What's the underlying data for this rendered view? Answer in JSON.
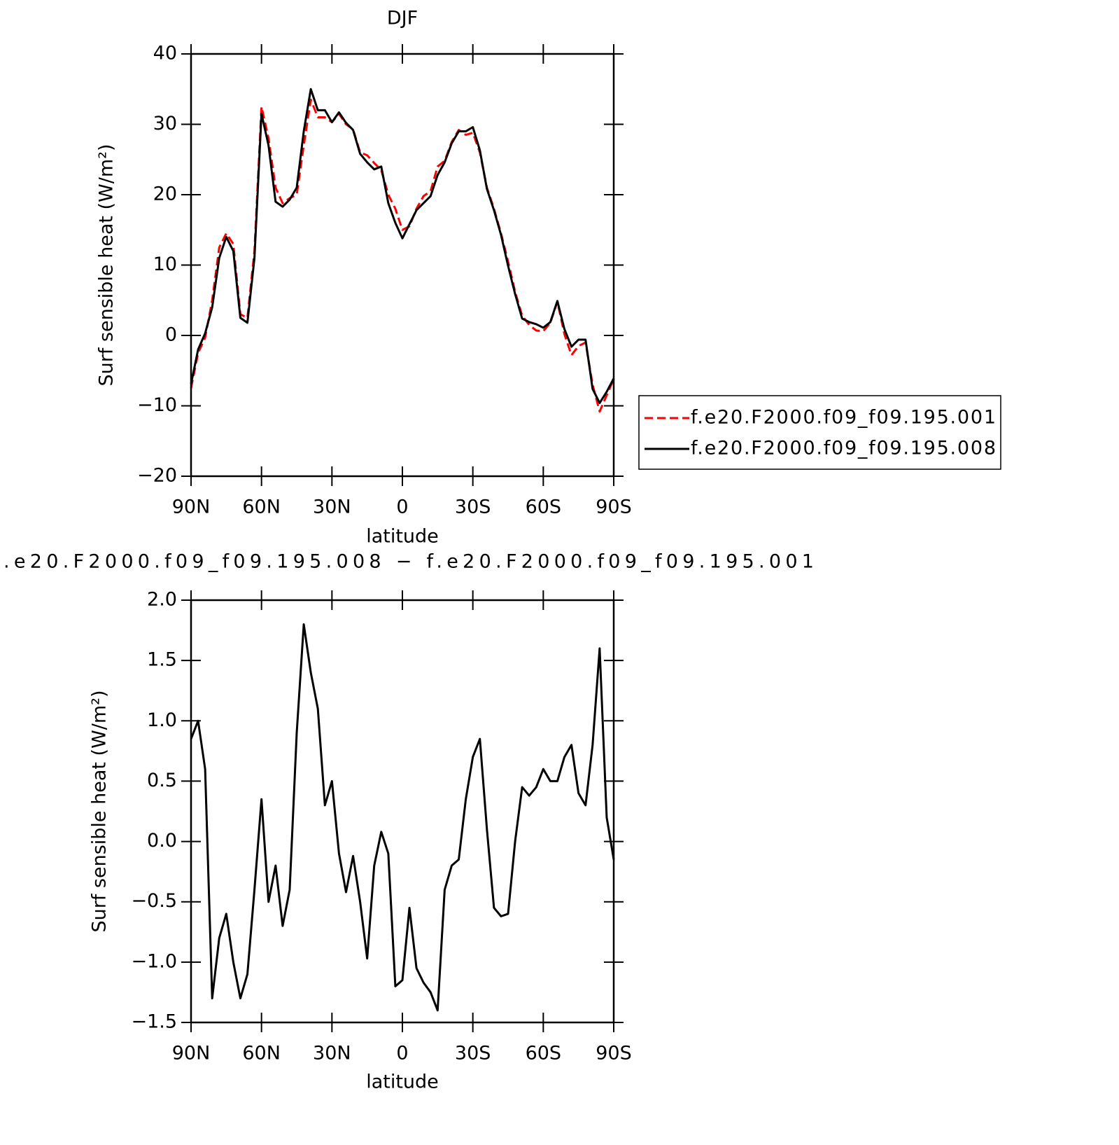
{
  "chart_data": [
    {
      "type": "line",
      "title": "DJF",
      "xlabel": "latitude",
      "ylabel": "Surf sensible heat (W/m²)",
      "xlim": [
        90,
        -90
      ],
      "ylim": [
        -20,
        40
      ],
      "xticks": [
        {
          "value": 90,
          "label": "90N"
        },
        {
          "value": 60,
          "label": "60N"
        },
        {
          "value": 30,
          "label": "30N"
        },
        0,
        {
          "value": -30,
          "label": "30S"
        },
        {
          "value": -60,
          "label": "60S"
        },
        {
          "value": -90,
          "label": "90S"
        }
      ],
      "yticks": [
        {
          "value": -20,
          "label": "−20"
        },
        {
          "value": -10,
          "label": "−10"
        },
        0,
        10,
        20,
        30,
        40
      ],
      "legend": "right",
      "x": [
        90,
        87,
        84,
        81,
        78,
        75,
        72,
        69,
        66,
        63,
        60,
        57,
        54,
        51,
        48,
        45,
        42,
        39,
        36,
        33,
        30,
        27,
        24,
        21,
        18,
        15,
        12,
        9,
        6,
        3,
        0,
        -3,
        -6,
        -9,
        -12,
        -15,
        -18,
        -21,
        -24,
        -27,
        -30,
        -33,
        -36,
        -39,
        -42,
        -45,
        -48,
        -51,
        -54,
        -57,
        -60,
        -63,
        -66,
        -69,
        -72,
        -75,
        -78,
        -81,
        -84,
        -87,
        -90
      ],
      "series": [
        {
          "name": "f.e20.F2000.f09_f09.195.001",
          "color": "#ff0000",
          "dash": true,
          "values": [
            -7.5,
            -2.5,
            -0.3,
            5,
            12.5,
            14.5,
            13,
            3,
            2.5,
            12,
            32.5,
            28,
            21,
            18.8,
            19.5,
            20,
            27,
            33.5,
            31,
            31,
            30.3,
            31.5,
            30,
            29.3,
            26,
            25.6,
            24.5,
            23.5,
            20,
            18,
            15,
            15.5,
            18,
            19.8,
            20.5,
            24,
            24.8,
            27.5,
            29.2,
            28.5,
            28.8,
            26,
            21,
            18,
            14.5,
            10.5,
            6.2,
            2.8,
            1.5,
            0.7,
            0.6,
            1.8,
            4.8,
            0.2,
            -2.8,
            -1.5,
            -1,
            -7,
            -10.8,
            -8.5,
            -6.2
          ]
        },
        {
          "name": "f.e20.F2000.f09_f09.195.008",
          "color": "#000000",
          "dash": false,
          "values": [
            -6.9,
            -2,
            0.3,
            4,
            11,
            14,
            12,
            2.5,
            1.8,
            11,
            31.5,
            27,
            19,
            18.3,
            19.3,
            21,
            29,
            35,
            32,
            32,
            30.3,
            31.7,
            30.2,
            29.2,
            25.8,
            24.6,
            23.6,
            24,
            18.8,
            16,
            13.8,
            15.8,
            17.8,
            18.8,
            19.8,
            22.8,
            24.6,
            27.3,
            29,
            29,
            29.6,
            26.3,
            20.8,
            17.8,
            14.3,
            9.9,
            5.9,
            2.4,
            1.9,
            1.6,
            1.1,
            1.9,
            4.9,
            0.9,
            -1.6,
            -0.6,
            -0.6,
            -7.6,
            -9.6,
            -8,
            -6.1
          ]
        }
      ]
    },
    {
      "type": "line",
      "title": ".e20.F2000.f09_f09.195.008 − f.e20.F2000.f09_f09.195.001",
      "xlabel": "latitude",
      "ylabel": "Surf sensible heat (W/m²)",
      "xlim": [
        90,
        -90
      ],
      "ylim": [
        -1.5,
        2
      ],
      "xticks": [
        {
          "value": 90,
          "label": "90N"
        },
        {
          "value": 60,
          "label": "60N"
        },
        {
          "value": 30,
          "label": "30N"
        },
        0,
        {
          "value": -30,
          "label": "30S"
        },
        {
          "value": -60,
          "label": "60S"
        },
        {
          "value": -90,
          "label": "90S"
        }
      ],
      "yticks": [
        {
          "value": -1.5,
          "label": "−1.5"
        },
        {
          "value": -1,
          "label": "−1.0"
        },
        {
          "value": -0.5,
          "label": "−0.5"
        },
        {
          "value": 0,
          "label": "0.0"
        },
        0.5,
        {
          "value": 1,
          "label": "1.0"
        },
        1.5,
        {
          "value": 2,
          "label": "2.0"
        }
      ],
      "x": [
        90,
        87,
        84,
        81,
        78,
        75,
        72,
        69,
        66,
        63,
        60,
        57,
        54,
        51,
        48,
        45,
        42,
        39,
        36,
        33,
        30,
        27,
        24,
        21,
        18,
        15,
        12,
        9,
        6,
        3,
        0,
        -3,
        -6,
        -9,
        -12,
        -15,
        -18,
        -21,
        -24,
        -27,
        -30,
        -33,
        -36,
        -39,
        -42,
        -45,
        -48,
        -51,
        -54,
        -57,
        -60,
        -63,
        -66,
        -69,
        -72,
        -75,
        -78,
        -81,
        -84,
        -87,
        -90
      ],
      "series": [
        {
          "color": "#000000",
          "dash": false,
          "values": [
            0.85,
            1,
            0.6,
            -1.3,
            -0.8,
            -0.6,
            -1,
            -1.3,
            -1.1,
            -0.4,
            0.35,
            -0.5,
            -0.2,
            -0.7,
            -0.4,
            0.9,
            1.8,
            1.4,
            1.1,
            0.3,
            0.5,
            -0.1,
            -0.42,
            -0.12,
            -0.5,
            -0.97,
            -0.2,
            0.08,
            -0.1,
            -1.2,
            -1.15,
            -0.55,
            -1.05,
            -1.17,
            -1.25,
            -1.4,
            -0.4,
            -0.2,
            -0.15,
            0.35,
            0.7,
            0.85,
            0.1,
            -0.55,
            -0.62,
            -0.6,
            0,
            0.45,
            0.38,
            0.45,
            0.6,
            0.5,
            0.5,
            0.7,
            0.8,
            0.4,
            0.3,
            0.8,
            1.6,
            0.2,
            -0.15
          ]
        }
      ]
    }
  ]
}
